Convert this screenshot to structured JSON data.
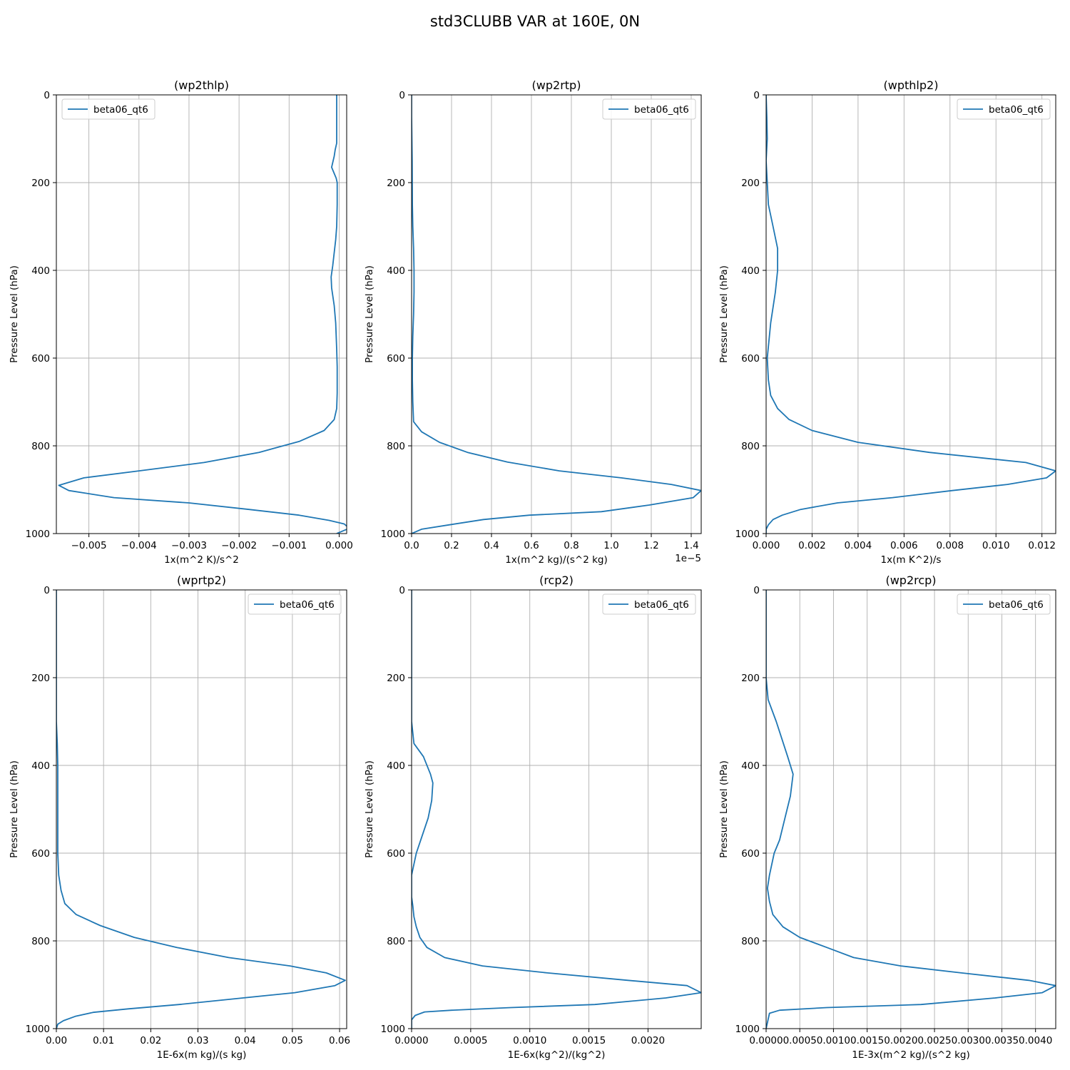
{
  "figure": {
    "suptitle": "std3CLUBB VAR at 160E, 0N",
    "line_color": "#1f77b4",
    "grid_color": "#b0b0b0"
  },
  "chart_data": [
    {
      "type": "line",
      "title": "(wp2thlp)",
      "xlabel": "1x(m^2 K)/s^2",
      "ylabel": "Pressure Level (hPa)",
      "xlim": [
        -0.00565,
        0.00015
      ],
      "ylim": [
        1000,
        0
      ],
      "x_ticks": [
        -0.005,
        -0.004,
        -0.003,
        -0.002,
        -0.001,
        0.0
      ],
      "x_tick_labels": [
        "−0.005",
        "−0.004",
        "−0.003",
        "−0.002",
        "−0.001",
        "0.000"
      ],
      "y_ticks": [
        0,
        200,
        400,
        600,
        800,
        1000
      ],
      "y_tick_labels": [
        "0",
        "200",
        "400",
        "600",
        "800",
        "1000"
      ],
      "offset_label": "",
      "legend": "top-left",
      "grid": true,
      "series": [
        {
          "name": "beta06_qt6",
          "x": [
            -5e-05,
            -5e-05,
            -5e-05,
            -5e-05,
            -8e-05,
            -0.0001,
            -0.00015,
            -6e-05,
            -4e-05,
            -4e-05,
            -5e-05,
            -7e-05,
            -0.0001,
            -0.00013,
            -0.00016,
            -0.00015,
            -0.0001,
            -7e-05,
            -5e-05,
            -4e-05,
            -4e-05,
            -5e-05,
            -0.0001,
            -0.0003,
            -0.0008,
            -0.0016,
            -0.0027,
            -0.004,
            -0.0051,
            -0.0056,
            -0.0054,
            -0.0045,
            -0.003,
            -0.0018,
            -0.0008,
            -0.0002,
            0.0001,
            0.0002,
            -5e-05
          ],
          "y": [
            0,
            50,
            90,
            110,
            125,
            140,
            165,
            190,
            200,
            250,
            300,
            330,
            360,
            390,
            415,
            440,
            480,
            520,
            580,
            620,
            680,
            715,
            740,
            765,
            790,
            815,
            838,
            857,
            873,
            890,
            902,
            918,
            930,
            945,
            958,
            970,
            978,
            988,
            1000
          ]
        }
      ]
    },
    {
      "type": "line",
      "title": "(wp2rtp)",
      "xlabel": "1x(m^2 kg)/(s^2 kg)",
      "ylabel": "Pressure Level (hPa)",
      "xlim": [
        0,
        1.45
      ],
      "ylim": [
        1000,
        0
      ],
      "x_ticks": [
        0.0,
        0.2,
        0.4,
        0.6,
        0.8,
        1.0,
        1.2,
        1.4
      ],
      "x_tick_labels": [
        "0.0",
        "0.2",
        "0.4",
        "0.6",
        "0.8",
        "1.0",
        "1.2",
        "1.4"
      ],
      "y_ticks": [
        0,
        200,
        400,
        600,
        800,
        1000
      ],
      "y_tick_labels": [
        "0",
        "200",
        "400",
        "600",
        "800",
        "1000"
      ],
      "offset_label": "1e−5",
      "legend": "top-right",
      "grid": true,
      "series": [
        {
          "name": "beta06_qt6",
          "x": [
            0.0,
            0.0,
            0.003,
            0.004,
            0.006,
            0.01,
            0.012,
            0.012,
            0.01,
            0.006,
            0.004,
            0.004,
            0.006,
            0.01,
            0.05,
            0.14,
            0.28,
            0.48,
            0.74,
            1.05,
            1.3,
            1.45,
            1.41,
            1.19,
            0.95,
            0.59,
            0.36,
            0.19,
            0.05,
            0.0
          ],
          "y": [
            0,
            50,
            150,
            250,
            300,
            350,
            400,
            450,
            500,
            550,
            600,
            650,
            700,
            745,
            768,
            792,
            815,
            837,
            857,
            873,
            888,
            902,
            918,
            935,
            950,
            958,
            968,
            980,
            990,
            1000
          ]
        }
      ]
    },
    {
      "type": "line",
      "title": "(wpthlp2)",
      "xlabel": "1x(m K^2)/s",
      "ylabel": "Pressure Level (hPa)",
      "xlim": [
        0,
        0.0126
      ],
      "ylim": [
        1000,
        0
      ],
      "x_ticks": [
        0.0,
        0.002,
        0.004,
        0.006,
        0.008,
        0.01,
        0.012
      ],
      "x_tick_labels": [
        "0.000",
        "0.002",
        "0.004",
        "0.006",
        "0.008",
        "0.010",
        "0.012"
      ],
      "y_ticks": [
        0,
        200,
        400,
        600,
        800,
        1000
      ],
      "y_tick_labels": [
        "0",
        "200",
        "400",
        "600",
        "800",
        "1000"
      ],
      "offset_label": "",
      "legend": "top-right",
      "grid": true,
      "series": [
        {
          "name": "beta06_qt6",
          "x": [
            0.0,
            3e-05,
            5e-05,
            0.0,
            5e-05,
            0.0001,
            0.0003,
            0.0005,
            0.0005,
            0.0004,
            0.0002,
            5e-05,
            0.0001,
            0.0002,
            0.0005,
            0.001,
            0.002,
            0.004,
            0.0071,
            0.0113,
            0.0126,
            0.0122,
            0.0105,
            0.0081,
            0.0055,
            0.0031,
            0.0015,
            0.0007,
            0.0003,
            0.0001,
            0.0,
            0.0
          ],
          "y": [
            0,
            50,
            100,
            150,
            200,
            250,
            300,
            350,
            400,
            450,
            520,
            600,
            650,
            685,
            715,
            740,
            765,
            792,
            815,
            838,
            857,
            873,
            888,
            902,
            918,
            930,
            945,
            958,
            968,
            980,
            990,
            1000
          ]
        }
      ]
    },
    {
      "type": "line",
      "title": "(wprtp2)",
      "xlabel": "1E-6x(m kg)/(s kg)",
      "ylabel": "Pressure Level (hPa)",
      "xlim": [
        0,
        0.0615
      ],
      "ylim": [
        1000,
        0
      ],
      "x_ticks": [
        0.0,
        0.01,
        0.02,
        0.03,
        0.04,
        0.05,
        0.06
      ],
      "x_tick_labels": [
        "0.00",
        "0.01",
        "0.02",
        "0.03",
        "0.04",
        "0.05",
        "0.06"
      ],
      "y_ticks": [
        0,
        200,
        400,
        600,
        800,
        1000
      ],
      "y_tick_labels": [
        "0",
        "200",
        "400",
        "600",
        "800",
        "1000"
      ],
      "offset_label": "",
      "legend": "top-right",
      "grid": true,
      "series": [
        {
          "name": "beta06_qt6",
          "x": [
            0.0,
            0.0,
            0.0002,
            0.0003,
            0.0003,
            0.0003,
            0.0003,
            0.0003,
            0.0005,
            0.001,
            0.0018,
            0.0042,
            0.0093,
            0.0165,
            0.0255,
            0.0365,
            0.0495,
            0.0572,
            0.0612,
            0.059,
            0.0505,
            0.0395,
            0.026,
            0.0152,
            0.0078,
            0.004,
            0.0015,
            0.0003,
            0.0
          ],
          "y": [
            0,
            300,
            350,
            400,
            450,
            500,
            550,
            600,
            650,
            685,
            715,
            740,
            765,
            792,
            815,
            838,
            857,
            873,
            890,
            902,
            918,
            930,
            945,
            955,
            963,
            972,
            982,
            990,
            1000
          ]
        }
      ]
    },
    {
      "type": "line",
      "title": "(rcp2)",
      "xlabel": "1E-6x(kg^2)/(kg^2)",
      "ylabel": "Pressure Level (hPa)",
      "xlim": [
        0,
        0.00245
      ],
      "ylim": [
        1000,
        0
      ],
      "x_ticks": [
        0.0,
        0.0005,
        0.001,
        0.0015,
        0.002
      ],
      "x_tick_labels": [
        "0.0000",
        "0.0005",
        "0.0010",
        "0.0015",
        "0.0020"
      ],
      "y_ticks": [
        0,
        200,
        400,
        600,
        800,
        1000
      ],
      "y_tick_labels": [
        "0",
        "200",
        "400",
        "600",
        "800",
        "1000"
      ],
      "offset_label": "",
      "legend": "top-right",
      "grid": true,
      "series": [
        {
          "name": "beta06_qt6",
          "x": [
            0.0,
            0.0,
            2e-05,
            0.0001,
            0.00016,
            0.00018,
            0.00017,
            0.00014,
            9e-05,
            4e-05,
            0.0,
            0.0,
            1e-05,
            2e-05,
            4e-05,
            7e-05,
            0.00013,
            0.00028,
            0.0006,
            0.00115,
            0.00183,
            0.00233,
            0.00245,
            0.00215,
            0.00155,
            0.00084,
            0.00034,
            0.00011,
            3e-05,
            0.0,
            0.0
          ],
          "y": [
            0,
            300,
            350,
            380,
            420,
            440,
            480,
            520,
            560,
            600,
            650,
            700,
            720,
            745,
            768,
            792,
            815,
            838,
            857,
            873,
            890,
            902,
            918,
            930,
            945,
            952,
            958,
            962,
            970,
            980,
            1000
          ]
        }
      ]
    },
    {
      "type": "line",
      "title": "(wp2rcp)",
      "xlabel": "1E-3x(m^2 kg)/(s^2 kg)",
      "ylabel": "Pressure Level (hPa)",
      "xlim": [
        0,
        0.0043
      ],
      "ylim": [
        1000,
        0
      ],
      "x_ticks": [
        0.0,
        0.0005,
        0.001,
        0.0015,
        0.002,
        0.0025,
        0.003,
        0.0035,
        0.004
      ],
      "x_tick_labels": [
        "0.0000",
        "0.0005",
        "0.0010",
        "0.0015",
        "0.0020",
        "0.0025",
        "0.0030",
        "0.0035",
        "0.0040"
      ],
      "y_ticks": [
        0,
        200,
        400,
        600,
        800,
        1000
      ],
      "y_tick_labels": [
        "0",
        "200",
        "400",
        "600",
        "800",
        "1000"
      ],
      "offset_label": "",
      "legend": "top-right",
      "grid": true,
      "series": [
        {
          "name": "beta06_qt6",
          "x": [
            0.0,
            0.0,
            3e-05,
            0.00015,
            0.00032,
            0.0004,
            0.00036,
            0.00028,
            0.0002,
            0.00012,
            5e-05,
            2e-05,
            5e-05,
            0.0001,
            0.00025,
            0.0005,
            0.0009,
            0.0013,
            0.002,
            0.0029,
            0.0039,
            0.0043,
            0.0041,
            0.0034,
            0.0023,
            0.0009,
            0.0002,
            5e-05,
            0.0
          ],
          "y": [
            0,
            200,
            250,
            300,
            380,
            420,
            470,
            520,
            570,
            600,
            650,
            680,
            710,
            740,
            768,
            792,
            815,
            838,
            857,
            873,
            890,
            902,
            918,
            930,
            945,
            952,
            958,
            965,
            1000
          ]
        }
      ]
    }
  ]
}
